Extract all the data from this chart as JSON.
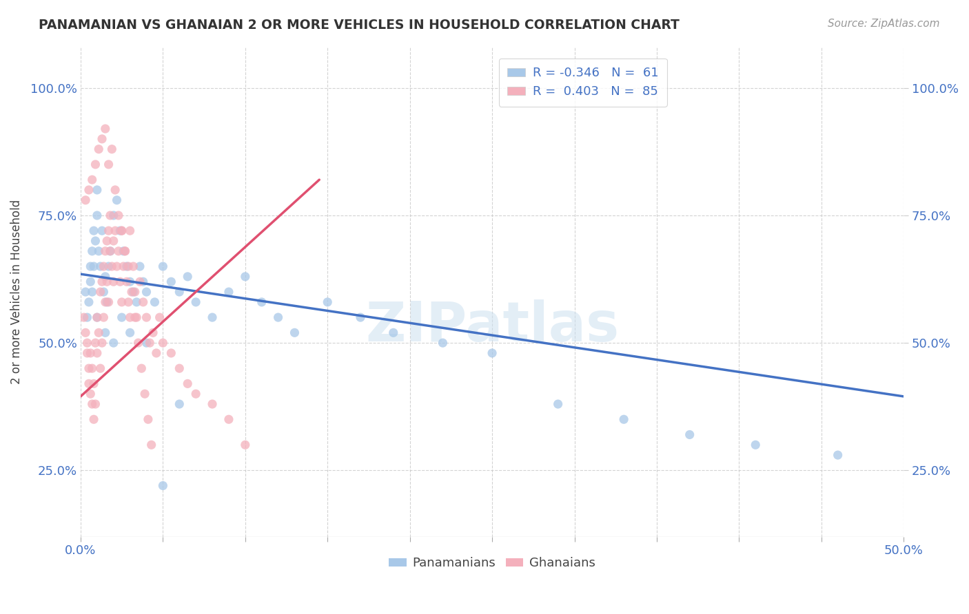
{
  "title": "PANAMANIAN VS GHANAIAN 2 OR MORE VEHICLES IN HOUSEHOLD CORRELATION CHART",
  "source": "Source: ZipAtlas.com",
  "ylabel": "2 or more Vehicles in Household",
  "yticks": [
    0.25,
    0.5,
    0.75,
    1.0
  ],
  "ytick_labels": [
    "25.0%",
    "50.0%",
    "75.0%",
    "100.0%"
  ],
  "xlim": [
    0.0,
    0.5
  ],
  "ylim": [
    0.12,
    1.08
  ],
  "blue_scatter_color": "#a8c8e8",
  "pink_scatter_color": "#f4b0bc",
  "trend_blue_color": "#4472c4",
  "trend_pink_color": "#e05070",
  "watermark_text": "ZIPatlas",
  "legend_line1": "R = -0.346   N =  61",
  "legend_line2": "R =  0.403   N =  85",
  "legend_color1": "#a8c8e8",
  "legend_color2": "#f4b0bc",
  "blue_trend_x0": 0.0,
  "blue_trend_y0": 0.635,
  "blue_trend_x1": 0.5,
  "blue_trend_y1": 0.395,
  "pink_trend_x0": 0.0,
  "pink_trend_y0": 0.395,
  "pink_trend_x1": 0.145,
  "pink_trend_y1": 0.82,
  "panamanians_x": [
    0.003,
    0.004,
    0.005,
    0.006,
    0.006,
    0.007,
    0.007,
    0.008,
    0.008,
    0.009,
    0.01,
    0.01,
    0.011,
    0.012,
    0.013,
    0.014,
    0.015,
    0.016,
    0.017,
    0.018,
    0.02,
    0.022,
    0.024,
    0.026,
    0.028,
    0.03,
    0.032,
    0.034,
    0.036,
    0.038,
    0.04,
    0.045,
    0.05,
    0.055,
    0.06,
    0.065,
    0.07,
    0.08,
    0.09,
    0.1,
    0.11,
    0.12,
    0.13,
    0.15,
    0.17,
    0.19,
    0.22,
    0.25,
    0.29,
    0.33,
    0.37,
    0.41,
    0.46,
    0.01,
    0.015,
    0.02,
    0.025,
    0.03,
    0.04,
    0.05,
    0.06
  ],
  "panamanians_y": [
    0.6,
    0.55,
    0.58,
    0.62,
    0.65,
    0.6,
    0.68,
    0.72,
    0.65,
    0.7,
    0.75,
    0.8,
    0.68,
    0.65,
    0.72,
    0.6,
    0.63,
    0.58,
    0.65,
    0.68,
    0.75,
    0.78,
    0.72,
    0.68,
    0.65,
    0.62,
    0.6,
    0.58,
    0.65,
    0.62,
    0.6,
    0.58,
    0.65,
    0.62,
    0.6,
    0.63,
    0.58,
    0.55,
    0.6,
    0.63,
    0.58,
    0.55,
    0.52,
    0.58,
    0.55,
    0.52,
    0.5,
    0.48,
    0.38,
    0.35,
    0.32,
    0.3,
    0.28,
    0.55,
    0.52,
    0.5,
    0.55,
    0.52,
    0.5,
    0.22,
    0.38
  ],
  "ghanaians_x": [
    0.002,
    0.003,
    0.004,
    0.004,
    0.005,
    0.005,
    0.006,
    0.006,
    0.007,
    0.007,
    0.008,
    0.008,
    0.009,
    0.009,
    0.01,
    0.01,
    0.011,
    0.012,
    0.012,
    0.013,
    0.013,
    0.014,
    0.014,
    0.015,
    0.015,
    0.016,
    0.016,
    0.017,
    0.017,
    0.018,
    0.018,
    0.019,
    0.02,
    0.02,
    0.021,
    0.022,
    0.023,
    0.024,
    0.025,
    0.025,
    0.026,
    0.027,
    0.028,
    0.029,
    0.03,
    0.03,
    0.032,
    0.033,
    0.034,
    0.036,
    0.038,
    0.04,
    0.042,
    0.044,
    0.046,
    0.048,
    0.05,
    0.055,
    0.06,
    0.065,
    0.07,
    0.08,
    0.09,
    0.1,
    0.003,
    0.005,
    0.007,
    0.009,
    0.011,
    0.013,
    0.015,
    0.017,
    0.019,
    0.021,
    0.023,
    0.025,
    0.027,
    0.029,
    0.031,
    0.033,
    0.035,
    0.037,
    0.039,
    0.041,
    0.043
  ],
  "ghanaians_y": [
    0.55,
    0.52,
    0.5,
    0.48,
    0.45,
    0.42,
    0.48,
    0.4,
    0.45,
    0.38,
    0.42,
    0.35,
    0.5,
    0.38,
    0.55,
    0.48,
    0.52,
    0.6,
    0.45,
    0.62,
    0.5,
    0.65,
    0.55,
    0.68,
    0.58,
    0.7,
    0.62,
    0.72,
    0.58,
    0.68,
    0.75,
    0.65,
    0.7,
    0.62,
    0.72,
    0.65,
    0.68,
    0.62,
    0.72,
    0.58,
    0.65,
    0.68,
    0.62,
    0.58,
    0.72,
    0.55,
    0.65,
    0.6,
    0.55,
    0.62,
    0.58,
    0.55,
    0.5,
    0.52,
    0.48,
    0.55,
    0.5,
    0.48,
    0.45,
    0.42,
    0.4,
    0.38,
    0.35,
    0.3,
    0.78,
    0.8,
    0.82,
    0.85,
    0.88,
    0.9,
    0.92,
    0.85,
    0.88,
    0.8,
    0.75,
    0.72,
    0.68,
    0.65,
    0.6,
    0.55,
    0.5,
    0.45,
    0.4,
    0.35,
    0.3
  ]
}
